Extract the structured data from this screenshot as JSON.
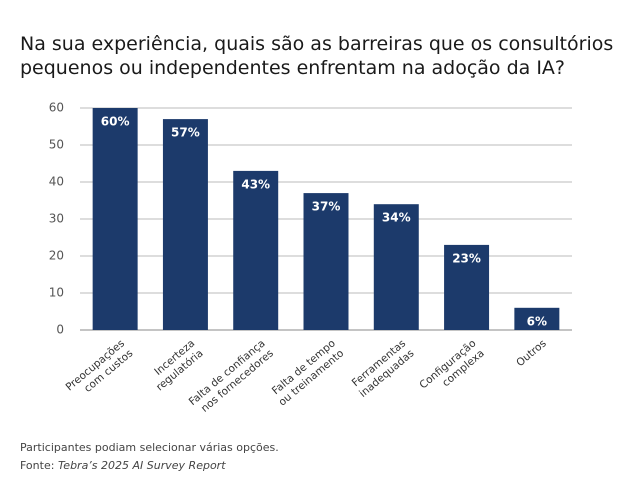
{
  "chart_data": {
    "type": "bar",
    "title": [
      "Na sua experiência, quais são as barreiras que os consultórios",
      "pequenos ou independentes enfrentam na adoção da IA?"
    ],
    "categories": [
      "Preocupações\ncom custos",
      "Incerteza\nregulatória",
      "Falta de confiança\nnos fornecedores",
      "Falta de tempo\nou treinamento",
      "Ferramentas\ninadequadas",
      "Configuração\ncomplexa",
      "Outros"
    ],
    "values": [
      60,
      57,
      43,
      37,
      34,
      23,
      6
    ],
    "value_labels": [
      "60%",
      "57%",
      "43%",
      "37%",
      "34%",
      "23%",
      "6%"
    ],
    "color": "#1c3a6b",
    "ylim": [
      0,
      60
    ],
    "yticks": [
      0,
      10,
      20,
      30,
      40,
      50,
      60
    ],
    "grid": true,
    "note": "Participantes podiam selecionar várias opções.",
    "source_label": "Fonte:",
    "source": "Tebra’s 2025 AI Survey Report"
  }
}
